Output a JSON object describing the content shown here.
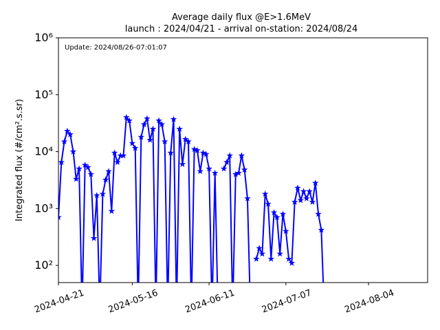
{
  "chart_data": {
    "type": "line",
    "title": "Average daily flux @E>1.6MeV",
    "subtitle": "launch : 2024/04/21 - arrival on-station: 2024/08/24",
    "annotation": "Update: 2024/08/26-07:01:07",
    "y_label": "Integrated flux (#/cm².s.sr)",
    "log_y": true,
    "color": "#0000ff",
    "x": [
      "2024-04-21",
      "2024-04-22",
      "2024-04-23",
      "2024-04-24",
      "2024-04-25",
      "2024-04-26",
      "2024-04-27",
      "2024-04-28",
      "2024-04-29",
      "2024-04-30",
      "2024-05-01",
      "2024-05-02",
      "2024-05-03",
      "2024-05-04",
      "2024-05-05",
      "2024-05-06",
      "2024-05-07",
      "2024-05-08",
      "2024-05-09",
      "2024-05-10",
      "2024-05-11",
      "2024-05-12",
      "2024-05-13",
      "2024-05-14",
      "2024-05-15",
      "2024-05-16",
      "2024-05-17",
      "2024-05-18",
      "2024-05-19",
      "2024-05-20",
      "2024-05-21",
      "2024-05-22",
      "2024-05-23",
      "2024-05-24",
      "2024-05-25",
      "2024-05-26",
      "2024-05-27",
      "2024-05-28",
      "2024-05-29",
      "2024-05-30",
      "2024-05-31",
      "2024-06-01",
      "2024-06-02",
      "2024-06-03",
      "2024-06-04",
      "2024-06-05",
      "2024-06-06",
      "2024-06-07",
      "2024-06-08",
      "2024-06-09",
      "2024-06-10",
      "2024-06-11",
      "2024-06-12",
      "2024-06-13",
      "2024-06-14",
      "2024-06-15",
      "2024-06-16",
      "2024-06-17",
      "2024-06-18",
      "2024-06-19",
      "2024-06-20",
      "2024-06-21",
      "2024-06-22",
      "2024-06-23",
      "2024-06-24",
      "2024-06-25",
      "2024-06-26",
      "2024-06-27",
      "2024-06-28",
      "2024-06-29",
      "2024-06-30",
      "2024-07-01",
      "2024-07-02",
      "2024-07-03",
      "2024-07-04",
      "2024-07-05",
      "2024-07-06",
      "2024-07-07",
      "2024-07-08",
      "2024-07-09",
      "2024-07-10",
      "2024-07-11",
      "2024-07-12",
      "2024-07-13",
      "2024-07-14",
      "2024-07-15",
      "2024-07-16",
      "2024-07-17",
      "2024-07-18",
      "2024-07-19",
      "2024-07-20"
    ],
    "values": [
      700,
      6500,
      15000,
      23000,
      20000,
      10000,
      3300,
      5000,
      0,
      5800,
      5300,
      4000,
      300,
      1700,
      0,
      1800,
      3200,
      4500,
      900,
      9500,
      6500,
      8500,
      8500,
      40000,
      35000,
      14000,
      11500,
      0,
      18000,
      30000,
      38000,
      16000,
      25000,
      0,
      35000,
      30000,
      15000,
      0,
      9500,
      37000,
      0,
      25000,
      6000,
      16500,
      15000,
      0,
      11000,
      10500,
      4500,
      9500,
      9000,
      5000,
      0,
      4200,
      0,
      null,
      5000,
      6500,
      8500,
      0,
      4000,
      4200,
      8500,
      4800,
      1500,
      0,
      null,
      130,
      200,
      160,
      1800,
      1200,
      130,
      850,
      700,
      160,
      800,
      400,
      130,
      110,
      1300,
      2300,
      1400,
      2000,
      1500,
      2000,
      1300,
      2800,
      800,
      420,
      0
    ],
    "xlim": [
      "2024-04-21",
      "2024-08-24"
    ],
    "xticks": [
      "2024-04-21",
      "2024-05-16",
      "2024-06-11",
      "2024-07-07",
      "2024-08-04"
    ],
    "ylim": [
      50,
      1000000
    ],
    "yticks": [
      {
        "value": 100,
        "label": "10²"
      },
      {
        "value": 1000,
        "label": "10³"
      },
      {
        "value": 10000,
        "label": "10⁴"
      },
      {
        "value": 100000,
        "label": "10⁵"
      },
      {
        "value": 1000000,
        "label": "10⁶"
      }
    ]
  }
}
